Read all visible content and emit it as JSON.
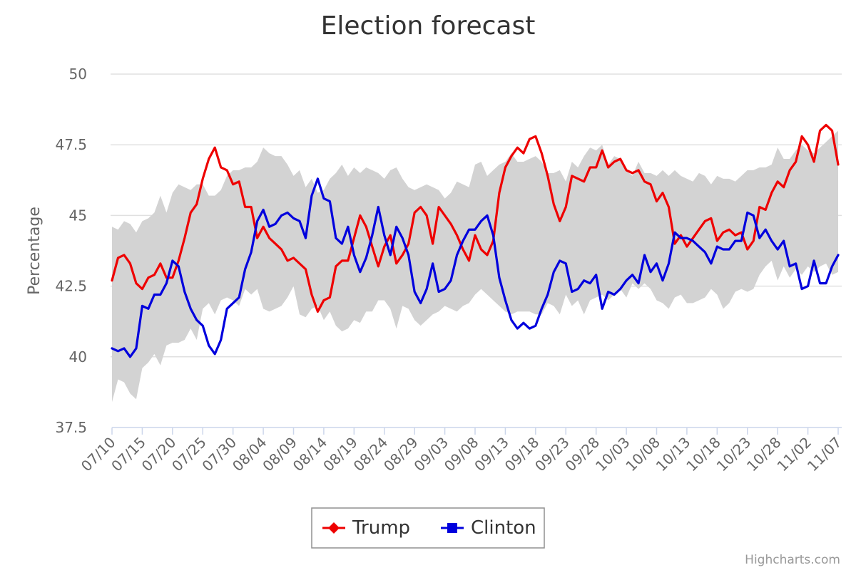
{
  "chart_data": {
    "type": "line",
    "title": "Election forecast",
    "ylabel": "Percentage",
    "xlabel": "",
    "ylim": [
      37.5,
      50
    ],
    "yticks": [
      37.5,
      40,
      42.5,
      45,
      47.5,
      50
    ],
    "ytick_labels": [
      "37.5",
      "40",
      "42.5",
      "45",
      "47.5",
      "50"
    ],
    "xtick_labels": [
      "07/10",
      "07/15",
      "07/20",
      "07/25",
      "07/30",
      "08/04",
      "08/09",
      "08/14",
      "08/19",
      "08/24",
      "08/29",
      "09/03",
      "09/08",
      "09/13",
      "09/18",
      "09/23",
      "09/28",
      "10/03",
      "10/08",
      "10/13",
      "10/18",
      "10/23",
      "10/28",
      "11/02",
      "11/07"
    ],
    "xtick_days": [
      0,
      5,
      10,
      15,
      20,
      25,
      30,
      35,
      40,
      45,
      50,
      55,
      60,
      65,
      70,
      75,
      80,
      85,
      90,
      95,
      100,
      105,
      110,
      115,
      120
    ],
    "grid": true,
    "legend_position": "bottom-center",
    "credits": "Highcharts.com",
    "series": [
      {
        "name": "Trump",
        "color": "#ee0000",
        "marker": "diamond",
        "values": [
          42.7,
          43.5,
          43.6,
          43.3,
          42.6,
          42.4,
          42.8,
          42.9,
          43.3,
          42.8,
          42.8,
          43.4,
          44.2,
          45.1,
          45.4,
          46.3,
          47.0,
          47.4,
          46.7,
          46.6,
          46.1,
          46.2,
          45.3,
          45.3,
          44.2,
          44.6,
          44.2,
          44.0,
          43.8,
          43.4,
          43.5,
          43.3,
          43.1,
          42.2,
          41.6,
          42.0,
          42.1,
          43.2,
          43.4,
          43.4,
          44.2,
          45.0,
          44.6,
          43.9,
          43.2,
          43.9,
          44.3,
          43.3,
          43.6,
          44.0,
          45.1,
          45.3,
          45.0,
          44.0,
          45.3,
          45.0,
          44.7,
          44.3,
          43.8,
          43.4,
          44.3,
          43.8,
          43.6,
          44.1,
          45.8,
          46.7,
          47.1,
          47.4,
          47.2,
          47.7,
          47.8,
          47.2,
          46.4,
          45.4,
          44.8,
          45.3,
          46.4,
          46.3,
          46.2,
          46.7,
          46.7,
          47.3,
          46.7,
          46.9,
          47.0,
          46.6,
          46.5,
          46.6,
          46.2,
          46.1,
          45.5,
          45.8,
          45.3,
          44.0,
          44.3,
          43.9,
          44.2,
          44.5,
          44.8,
          44.9,
          44.1,
          44.4,
          44.5,
          44.3,
          44.4,
          43.8,
          44.1,
          45.3,
          45.2,
          45.8,
          46.2,
          46.0,
          46.6,
          46.9,
          47.8,
          47.5,
          46.9,
          48.0,
          48.2,
          48.0,
          46.8
        ]
      },
      {
        "name": "Clinton",
        "color": "#0000dd",
        "marker": "square",
        "values": [
          40.3,
          40.2,
          40.3,
          40.0,
          40.3,
          41.8,
          41.7,
          42.2,
          42.2,
          42.6,
          43.4,
          43.2,
          42.3,
          41.7,
          41.3,
          41.1,
          40.4,
          40.1,
          40.6,
          41.7,
          41.9,
          42.1,
          43.1,
          43.7,
          44.8,
          45.2,
          44.6,
          44.7,
          45.0,
          45.1,
          44.9,
          44.8,
          44.2,
          45.7,
          46.3,
          45.6,
          45.5,
          44.2,
          44.0,
          44.6,
          43.6,
          43.0,
          43.5,
          44.3,
          45.3,
          44.3,
          43.6,
          44.6,
          44.2,
          43.6,
          42.3,
          41.9,
          42.4,
          43.3,
          42.3,
          42.4,
          42.7,
          43.6,
          44.1,
          44.5,
          44.5,
          44.8,
          45.0,
          44.3,
          42.8,
          42.0,
          41.3,
          41.0,
          41.2,
          41.0,
          41.1,
          41.7,
          42.2,
          43.0,
          43.4,
          43.3,
          42.3,
          42.4,
          42.7,
          42.6,
          42.9,
          41.7,
          42.3,
          42.2,
          42.4,
          42.7,
          42.9,
          42.6,
          43.6,
          43.0,
          43.3,
          42.7,
          43.3,
          44.4,
          44.2,
          44.2,
          44.1,
          43.9,
          43.7,
          43.3,
          43.9,
          43.8,
          43.8,
          44.1,
          44.1,
          45.1,
          45.0,
          44.2,
          44.5,
          44.1,
          43.8,
          44.1,
          43.2,
          43.3,
          42.4,
          42.5,
          43.4,
          42.6,
          42.6,
          43.2,
          43.6
        ]
      }
    ],
    "band": {
      "name": "range",
      "color": "#d3d3d3",
      "lower": [
        38.4,
        39.2,
        39.1,
        38.7,
        38.5,
        39.6,
        39.8,
        40.1,
        39.7,
        40.4,
        40.5,
        40.5,
        40.6,
        41.0,
        40.6,
        41.7,
        41.9,
        41.5,
        42.0,
        42.1,
        42.0,
        41.8,
        42.4,
        42.2,
        42.4,
        41.7,
        41.6,
        41.7,
        41.8,
        42.1,
        42.5,
        41.5,
        41.4,
        41.7,
        41.8,
        41.3,
        41.6,
        41.1,
        40.9,
        41.0,
        41.3,
        41.2,
        41.6,
        41.6,
        42.0,
        42.0,
        41.7,
        41.0,
        41.8,
        41.7,
        41.3,
        41.1,
        41.3,
        41.5,
        41.6,
        41.8,
        41.7,
        41.6,
        41.8,
        41.9,
        42.2,
        42.4,
        42.2,
        42.0,
        41.8,
        41.6,
        41.5,
        41.6,
        41.6,
        41.6,
        41.5,
        41.5,
        41.9,
        41.8,
        41.5,
        42.2,
        41.8,
        42.0,
        41.5,
        42.0,
        42.1,
        42.2,
        42.0,
        42.2,
        42.4,
        42.1,
        42.6,
        42.4,
        42.6,
        42.4,
        42.0,
        41.9,
        41.7,
        42.1,
        42.2,
        41.9,
        41.9,
        42.0,
        42.1,
        42.4,
        42.2,
        41.7,
        41.9,
        42.3,
        42.4,
        42.3,
        42.4,
        42.9,
        43.2,
        43.4,
        42.7,
        43.2,
        42.8,
        43.1,
        42.9,
        43.2,
        43.0,
        43.2,
        43.3,
        42.9,
        43.0
      ],
      "upper": [
        44.6,
        44.5,
        44.8,
        44.7,
        44.4,
        44.8,
        44.9,
        45.1,
        45.7,
        45.1,
        45.8,
        46.1,
        46.0,
        45.9,
        46.1,
        46.1,
        45.7,
        45.7,
        45.9,
        46.4,
        46.6,
        46.6,
        46.7,
        46.7,
        46.9,
        47.4,
        47.2,
        47.1,
        47.1,
        46.8,
        46.4,
        46.6,
        46.0,
        46.3,
        45.8,
        45.9,
        46.3,
        46.5,
        46.8,
        46.4,
        46.7,
        46.5,
        46.7,
        46.6,
        46.5,
        46.3,
        46.6,
        46.7,
        46.3,
        46.0,
        45.9,
        46.0,
        46.1,
        46.0,
        45.9,
        45.6,
        45.8,
        46.2,
        46.1,
        46.0,
        46.8,
        46.9,
        46.4,
        46.6,
        46.8,
        46.9,
        47.2,
        46.9,
        46.9,
        47.0,
        47.1,
        46.9,
        46.5,
        46.5,
        46.6,
        46.2,
        46.9,
        46.7,
        47.1,
        47.4,
        47.3,
        47.5,
        46.8,
        47.1,
        47.0,
        46.6,
        46.4,
        46.9,
        46.5,
        46.5,
        46.4,
        46.6,
        46.4,
        46.6,
        46.4,
        46.3,
        46.2,
        46.5,
        46.4,
        46.1,
        46.4,
        46.3,
        46.3,
        46.2,
        46.4,
        46.6,
        46.6,
        46.7,
        46.7,
        46.8,
        47.4,
        47.0,
        47.0,
        47.3,
        47.5,
        47.3,
        47.2,
        47.4,
        47.6,
        47.8,
        48.0
      ]
    }
  }
}
